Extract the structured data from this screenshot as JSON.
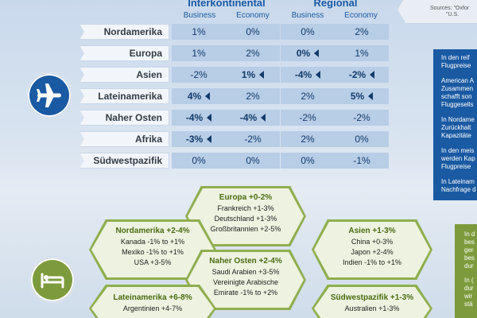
{
  "table": {
    "group_inter": "Interkontinental",
    "group_regional": "Regional",
    "col_business": "Business",
    "col_economy": "Economy",
    "rows": [
      {
        "label": "Nordamerika",
        "ib": "1%",
        "ie": "0%",
        "rb": "0%",
        "re": "2%"
      },
      {
        "label": "Europa",
        "ib": "1%",
        "ie": "2%",
        "rb": "0%",
        "re": "1%"
      },
      {
        "label": "Asien",
        "ib": "-2%",
        "ie": "1%",
        "rb": "-4%",
        "re": "-2%"
      },
      {
        "label": "Lateinamerika",
        "ib": "4%",
        "ie": "2%",
        "rb": "2%",
        "re": "5%"
      },
      {
        "label": "Naher Osten",
        "ib": "-4%",
        "ie": "-4%",
        "rb": "-2%",
        "re": "-2%"
      },
      {
        "label": "Afrika",
        "ib": "-3%",
        "ie": "-2%",
        "rb": "2%",
        "re": "0%"
      },
      {
        "label": "Südwestpazifik",
        "ib": "0%",
        "ie": "0%",
        "rb": "0%",
        "re": "-1%"
      }
    ]
  },
  "sources": {
    "line1": "Sources: \"Oxfor",
    "line2": "\"U.S."
  },
  "right_panel": [
    {
      "l1": "In den reif",
      "l2": "Flugpreise"
    },
    {
      "l1": "American A",
      "l2": "Zusammen",
      "l3": "schafft son",
      "l4": "Fluggesells"
    },
    {
      "l1": "In Nordame",
      "l2": "Zurückhalt",
      "l3": "Kapazitäte"
    },
    {
      "l1": "In den meis",
      "l2": "werden Kap",
      "l3": "Flugpreise"
    },
    {
      "l1": "In Lateinam",
      "l2": "Nachfrage d"
    }
  ],
  "right_panel_green": [
    {
      "l1": "In d",
      "l2": "bes",
      "l3": "ger",
      "l4": "bes",
      "l5": "dur"
    },
    {
      "l1": "In (",
      "l2": "dur",
      "l3": "wir",
      "l4": "stä"
    }
  ],
  "hotels": {
    "europa": {
      "title": "Europa +0-2%",
      "l1": "Frankreich +1-3%",
      "l2": "Deutschland +1-3%",
      "l3": "Großbritannien +2-5%"
    },
    "nordam": {
      "title": "Nordamerika +2-4%",
      "l1": "Kanada -1% to +1%",
      "l2": "Mexiko -1% to +1%",
      "l3": "USA +3-5%"
    },
    "asien": {
      "title": "Asien +1-3%",
      "l1": "China +0-3%",
      "l2": "Japon +2-4%",
      "l3": "Indien -1% to +1%"
    },
    "naher": {
      "title": "Naher Osten +2-4%",
      "l1": "Saudi Arabien +3-5%",
      "l2": "Vereinigte Arabische",
      "l3": "Emirate -1% to +2%"
    },
    "latam": {
      "title": "Lateinamerika +6-8%",
      "l1": "Argentinien +4-7%"
    },
    "swp": {
      "title": "Südwestpazifik +1-3%",
      "l1": "Australien +1-3%"
    }
  },
  "icons": {
    "plane": "airplane-icon",
    "hotel": "bed-icon"
  },
  "colors": {
    "primary_blue": "#1a5aa3",
    "cell_blue": "#b8cde6",
    "hotel_green": "#7d9b3c",
    "hex_fill": "#edf3e0"
  }
}
